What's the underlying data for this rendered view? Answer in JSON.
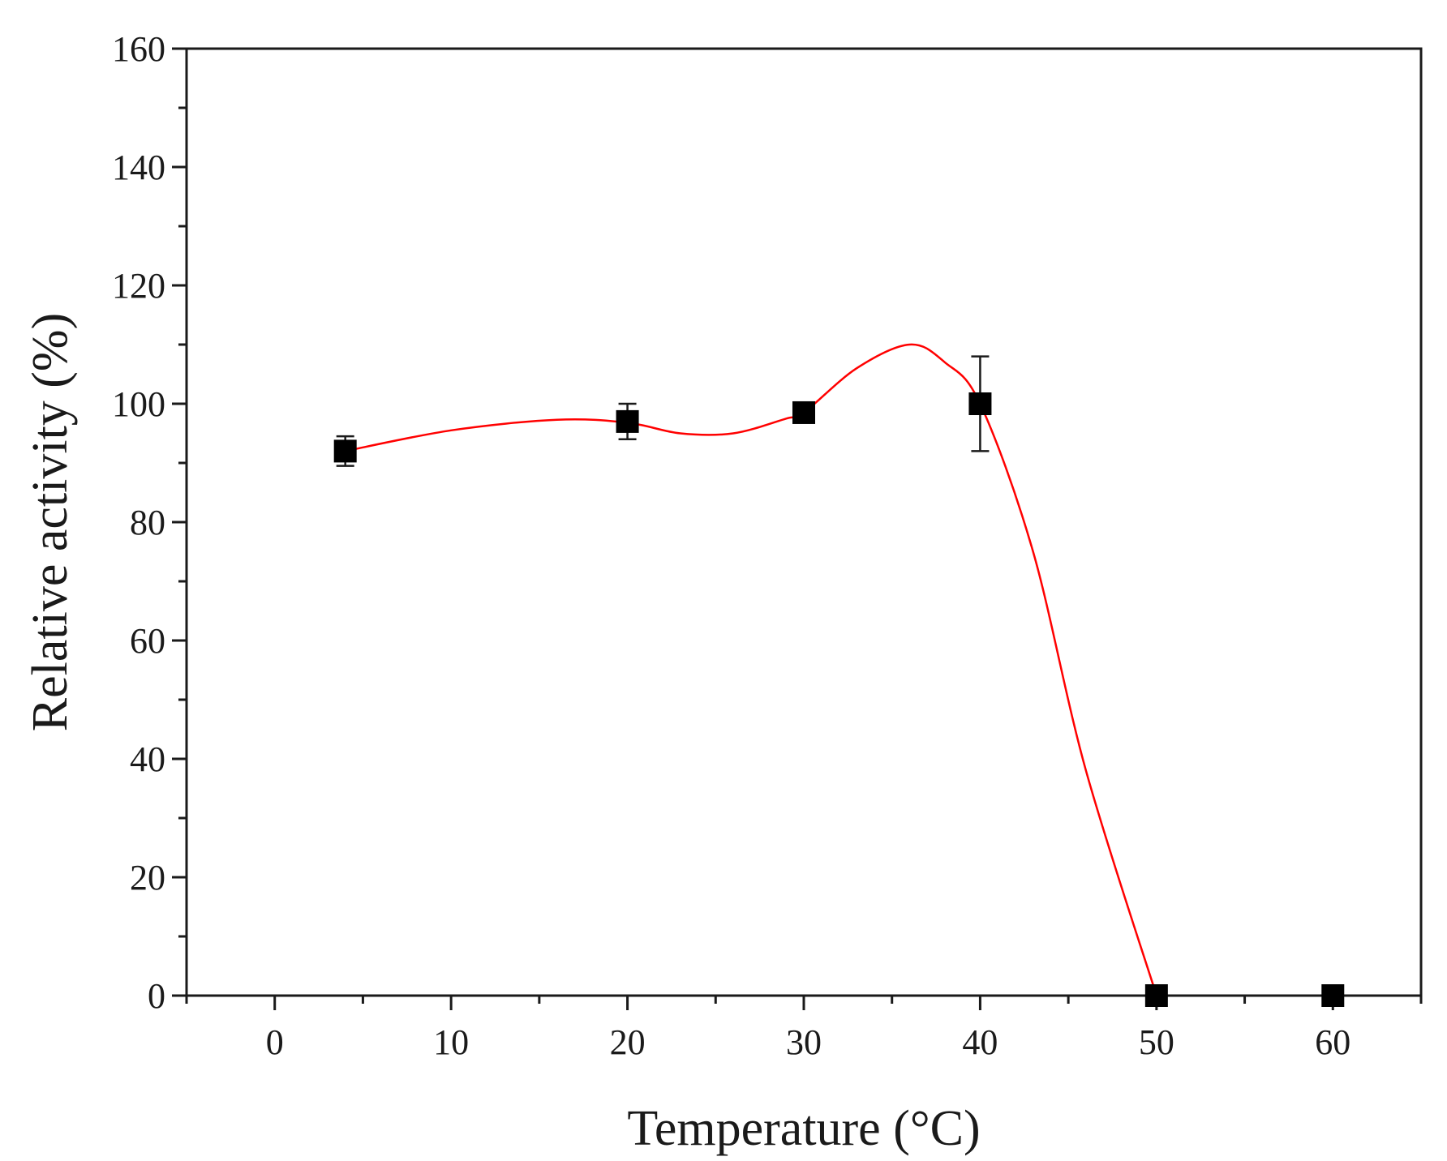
{
  "chart_data": {
    "type": "scatter",
    "title": "",
    "xlabel": "Temperature (°C)",
    "ylabel": "Relative activity (%)",
    "xlim": [
      -5,
      65
    ],
    "ylim": [
      0,
      160
    ],
    "x_ticks": [
      0,
      10,
      20,
      30,
      40,
      50,
      60
    ],
    "x_tick_labels": [
      "0",
      "10",
      "20",
      "30",
      "40",
      "50",
      "60"
    ],
    "x_minor_step": 5,
    "y_ticks": [
      0,
      20,
      40,
      60,
      80,
      100,
      120,
      140,
      160
    ],
    "y_tick_labels": [
      "0",
      "20",
      "40",
      "60",
      "80",
      "100",
      "120",
      "140",
      "160"
    ],
    "y_minor_step": 10,
    "grid": false,
    "legend": "none",
    "series": [
      {
        "marker": "square",
        "color": "#000000",
        "x": [
          4,
          20,
          30,
          40,
          50,
          60
        ],
        "y": [
          92,
          97,
          98.5,
          100,
          0,
          0
        ],
        "error": [
          2.5,
          3,
          0.8,
          8,
          0,
          0
        ]
      }
    ],
    "fit_curve": {
      "color": "#ff0000",
      "x": [
        4,
        10,
        16,
        20,
        23,
        26,
        29,
        30,
        33,
        36,
        38,
        40,
        43,
        46,
        50
      ],
      "y": [
        92,
        95.5,
        97.3,
        96.8,
        95,
        95,
        97.5,
        98.5,
        106,
        110,
        107,
        100,
        75,
        38,
        0
      ]
    }
  }
}
